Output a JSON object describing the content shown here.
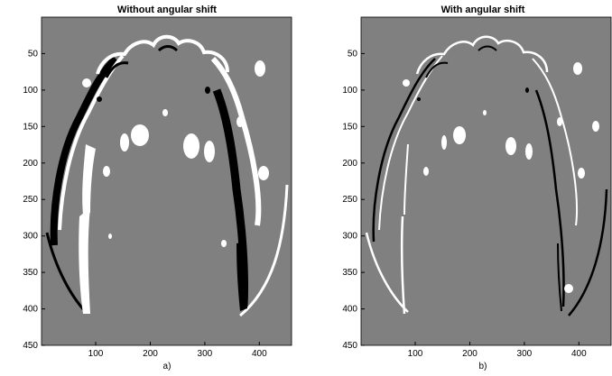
{
  "figure": {
    "background": "#ffffff",
    "panel_background": "#808080",
    "mark_colors": {
      "positive": "#ffffff",
      "negative": "#000000"
    }
  },
  "chart_data": [
    {
      "type": "heatmap",
      "title": "Without angular shift",
      "caption": "a)",
      "xlabel": "",
      "ylabel": "",
      "xlim": [
        1,
        460
      ],
      "ylim": [
        0,
        450
      ],
      "y_reversed": true,
      "x_ticks": [
        100,
        200,
        300,
        400
      ],
      "y_ticks": [
        50,
        100,
        150,
        200,
        250,
        300,
        350,
        400,
        450
      ],
      "x_tick_labels": [
        "100",
        "200",
        "300",
        "400"
      ],
      "y_tick_labels": [
        "50",
        "100",
        "150",
        "200",
        "250",
        "300",
        "350",
        "400",
        "450"
      ],
      "grid": false
    },
    {
      "type": "heatmap",
      "title": "With angular shift",
      "caption": "b)",
      "xlabel": "",
      "ylabel": "",
      "xlim": [
        1,
        460
      ],
      "ylim": [
        0,
        450
      ],
      "y_reversed": true,
      "x_ticks": [
        100,
        200,
        300,
        400
      ],
      "y_ticks": [
        50,
        100,
        150,
        200,
        250,
        300,
        350,
        400,
        450
      ],
      "x_tick_labels": [
        "100",
        "200",
        "300",
        "400"
      ],
      "y_tick_labels": [
        "50",
        "100",
        "150",
        "200",
        "250",
        "300",
        "350",
        "400",
        "450"
      ],
      "grid": false
    }
  ]
}
